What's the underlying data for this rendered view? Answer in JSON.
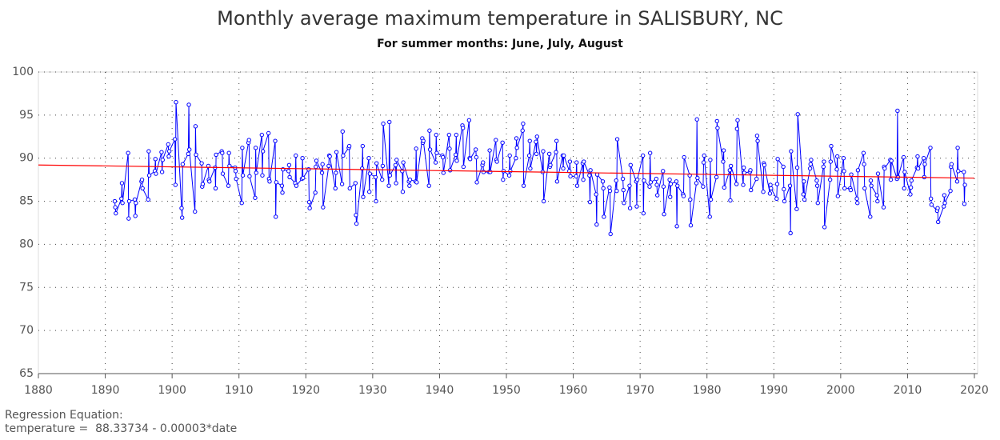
{
  "chart_data": {
    "type": "line",
    "title": "Monthly average maximum temperature in SALISBURY, NC",
    "subtitle": "For summer months: June, July, August",
    "annotations": [
      "Regression Equation:",
      "temperature =  88.33734 - 0.00003*date"
    ],
    "xlim": [
      1880,
      2020
    ],
    "xticks": [
      1880,
      1890,
      1900,
      1910,
      1920,
      1930,
      1940,
      1950,
      1960,
      1970,
      1980,
      1990,
      2000,
      2010,
      2020
    ],
    "ylim": [
      65,
      100
    ],
    "yticks": [
      65,
      70,
      75,
      80,
      85,
      90,
      95,
      100
    ],
    "grid": true,
    "series": [
      {
        "color": "#0000ff",
        "markers": true,
        "x": [
          1891.42,
          1891.5,
          1891.58,
          1892.42,
          1892.5,
          1892.58,
          1893.42,
          1893.5,
          1893.58,
          1894.42,
          1894.5,
          1894.58,
          1895.42,
          1895.5,
          1895.58,
          1896.42,
          1896.5,
          1896.58,
          1897.42,
          1897.5,
          1897.58,
          1898.42,
          1898.5,
          1898.58,
          1899.42,
          1899.5,
          1899.58,
          1900.42,
          1900.5,
          1900.58,
          1901.42,
          1901.5,
          1901.58,
          1902.42,
          1902.5,
          1902.58,
          1903.42,
          1903.5,
          1903.58,
          1904.42,
          1904.5,
          1904.58,
          1905.42,
          1905.5,
          1905.58,
          1906.42,
          1906.5,
          1906.58,
          1907.42,
          1907.5,
          1907.58,
          1908.42,
          1908.5,
          1908.58,
          1909.42,
          1909.5,
          1909.58,
          1910.42,
          1910.5,
          1910.58,
          1911.42,
          1911.5,
          1911.58,
          1912.42,
          1912.5,
          1912.58,
          1913.42,
          1913.5,
          1913.58,
          1914.42,
          1914.5,
          1914.58,
          1915.42,
          1915.5,
          1915.58,
          1916.42,
          1916.5,
          1916.58,
          1917.42,
          1917.5,
          1917.58,
          1918.42,
          1918.5,
          1918.58,
          1919.42,
          1919.5,
          1919.58,
          1920.42,
          1920.5,
          1920.58,
          1921.42,
          1921.5,
          1921.58,
          1922.42,
          1922.5,
          1922.58,
          1923.42,
          1923.5,
          1923.58,
          1924.42,
          1924.5,
          1924.58,
          1925.42,
          1925.5,
          1925.58,
          1926.42,
          1926.5,
          1926.58,
          1927.42,
          1927.5,
          1927.58,
          1928.42,
          1928.5,
          1928.58,
          1929.42,
          1929.5,
          1929.58,
          1930.42,
          1930.5,
          1930.58,
          1931.42,
          1931.5,
          1931.58,
          1932.42,
          1932.5,
          1932.58,
          1933.42,
          1933.5,
          1933.58,
          1934.42,
          1934.5,
          1934.58,
          1935.42,
          1935.5,
          1935.58,
          1936.42,
          1936.5,
          1936.58,
          1937.42,
          1937.5,
          1937.58,
          1938.42,
          1938.5,
          1938.58,
          1939.42,
          1939.5,
          1939.58,
          1940.42,
          1940.5,
          1940.58,
          1941.42,
          1941.5,
          1941.58,
          1942.42,
          1942.5,
          1942.58,
          1943.42,
          1943.5,
          1943.58,
          1944.42,
          1944.5,
          1944.58,
          1945.42,
          1945.5,
          1945.58,
          1946.42,
          1946.5,
          1946.58,
          1947.42,
          1947.5,
          1947.58,
          1948.42,
          1948.5,
          1948.58,
          1949.42,
          1949.5,
          1949.58,
          1950.42,
          1950.5,
          1950.58,
          1951.42,
          1951.5,
          1951.58,
          1952.42,
          1952.5,
          1952.58,
          1953.42,
          1953.5,
          1953.58,
          1954.42,
          1954.5,
          1954.58,
          1955.42,
          1955.5,
          1955.58,
          1956.42,
          1956.5,
          1956.58,
          1957.42,
          1957.5,
          1957.58,
          1958.42,
          1958.5,
          1958.58,
          1959.42,
          1959.5,
          1959.58,
          1960.42,
          1960.5,
          1960.58,
          1961.42,
          1961.5,
          1961.58,
          1962.42,
          1962.5,
          1962.58,
          1963.42,
          1963.5,
          1963.58,
          1964.42,
          1964.5,
          1964.58,
          1965.42,
          1965.5,
          1965.58,
          1966.42,
          1966.5,
          1966.58,
          1967.42,
          1967.5,
          1967.58,
          1968.42,
          1968.5,
          1968.58,
          1969.42,
          1969.5,
          1969.58,
          1970.42,
          1970.5,
          1970.58,
          1971.42,
          1971.5,
          1971.58,
          1972.42,
          1972.5,
          1972.58,
          1973.42,
          1973.5,
          1973.58,
          1974.42,
          1974.5,
          1974.58,
          1975.42,
          1975.5,
          1975.58,
          1976.42,
          1976.5,
          1976.58,
          1977.42,
          1977.5,
          1977.58,
          1978.42,
          1978.5,
          1978.58,
          1979.42,
          1979.5,
          1979.58,
          1980.42,
          1980.5,
          1980.58,
          1981.42,
          1981.5,
          1981.58,
          1982.42,
          1982.5,
          1982.58,
          1983.42,
          1983.5,
          1983.58,
          1984.42,
          1984.5,
          1984.58,
          1985.42,
          1985.5,
          1985.58,
          1986.42,
          1986.5,
          1986.58,
          1987.42,
          1987.5,
          1987.58,
          1988.42,
          1988.5,
          1988.58,
          1989.42,
          1989.5,
          1989.58,
          1990.42,
          1990.5,
          1990.58,
          1991.42,
          1991.5,
          1991.58,
          1992.42,
          1992.5,
          1992.58,
          1993.42,
          1993.5,
          1993.58,
          1994.42,
          1994.5,
          1994.58,
          1995.42,
          1995.5,
          1995.58,
          1996.42,
          1996.5,
          1996.58,
          1997.42,
          1997.5,
          1997.58,
          1998.42,
          1998.5,
          1998.58,
          1999.42,
          1999.5,
          1999.58,
          2000.42,
          2000.5,
          2000.58,
          2001.42,
          2001.5,
          2001.58,
          2002.42,
          2002.5,
          2002.58,
          2003.42,
          2003.5,
          2003.58,
          2004.42,
          2004.5,
          2004.58,
          2005.42,
          2005.5,
          2005.58,
          2006.42,
          2006.5,
          2006.58,
          2007.42,
          2007.5,
          2007.58,
          2008.42,
          2008.5,
          2008.58,
          2009.42,
          2009.5,
          2009.58,
          2010.42,
          2010.5,
          2010.58,
          2011.42,
          2011.5,
          2011.58,
          2012.42,
          2012.5,
          2012.58,
          2013.42,
          2013.5,
          2013.58,
          2014.42,
          2014.5,
          2014.58,
          2015.42,
          2015.5,
          2015.58,
          2016.42,
          2016.5,
          2016.58,
          2017.42,
          2017.5,
          2017.58,
          2018.42,
          2018.5,
          2018.58
        ],
        "values": [
          85.0,
          84.3,
          83.6,
          85.3,
          87.1,
          84.8,
          90.6,
          83.0,
          85.0,
          85.2,
          83.3,
          84.8,
          87.3,
          87.5,
          86.5,
          85.2,
          90.8,
          88.0,
          88.5,
          89.9,
          88.2,
          90.7,
          88.4,
          89.8,
          91.6,
          90.2,
          90.8,
          92.2,
          86.9,
          96.5,
          84.2,
          83.1,
          89.3,
          90.5,
          96.2,
          91.0,
          83.8,
          93.7,
          90.4,
          89.4,
          86.7,
          87.0,
          89.1,
          87.5,
          87.3,
          88.9,
          86.5,
          90.4,
          90.8,
          90.6,
          88.2,
          86.8,
          90.6,
          89.1,
          88.9,
          88.5,
          87.6,
          84.8,
          91.2,
          88.0,
          91.8,
          92.1,
          87.9,
          85.4,
          91.2,
          88.3,
          92.7,
          88.0,
          90.8,
          92.9,
          87.6,
          87.3,
          92.0,
          83.2,
          87.2,
          86.8,
          86.0,
          88.7,
          88.5,
          89.2,
          87.8,
          87.1,
          90.3,
          86.8,
          87.6,
          90.0,
          87.7,
          88.7,
          84.9,
          84.2,
          86.0,
          89.0,
          89.7,
          88.3,
          89.3,
          84.3,
          89.1,
          90.3,
          90.2,
          86.5,
          88.3,
          90.7,
          87.0,
          93.1,
          90.3,
          91.2,
          91.4,
          86.5,
          87.1,
          83.4,
          82.4,
          88.8,
          91.4,
          85.5,
          90.0,
          86.1,
          88.2,
          87.8,
          85.0,
          89.4,
          87.5,
          89.1,
          94.0,
          86.8,
          94.2,
          88.0,
          89.2,
          87.1,
          89.8,
          88.5,
          86.1,
          89.5,
          87.3,
          86.8,
          87.5,
          87.3,
          91.1,
          87.2,
          92.3,
          91.8,
          92.0,
          86.8,
          93.2,
          91.0,
          89.5,
          92.7,
          90.6,
          90.3,
          90.1,
          88.3,
          92.7,
          91.1,
          88.6,
          90.4,
          92.7,
          89.7,
          93.8,
          93.5,
          89.0,
          94.4,
          90.0,
          89.9,
          91.0,
          90.1,
          87.2,
          89.2,
          89.5,
          88.4,
          88.4,
          90.9,
          88.4,
          92.1,
          89.8,
          89.6,
          91.8,
          87.5,
          88.5,
          88.0,
          90.3,
          88.5,
          90.0,
          92.3,
          91.2,
          93.2,
          94.0,
          86.8,
          90.3,
          92.0,
          88.8,
          91.9,
          90.5,
          92.5,
          88.4,
          90.8,
          85.0,
          90.5,
          89.0,
          89.2,
          90.7,
          92.0,
          87.3,
          90.3,
          88.8,
          90.3,
          88.5,
          89.6,
          87.9,
          87.9,
          89.5,
          86.8,
          89.4,
          87.5,
          89.6,
          88.0,
          84.9,
          88.6,
          85.8,
          82.3,
          88.1,
          87.3,
          86.5,
          83.2,
          86.6,
          86.2,
          81.2,
          87.4,
          86.2,
          92.2,
          87.6,
          86.3,
          84.8,
          86.8,
          84.2,
          89.2,
          87.3,
          84.4,
          87.5,
          90.3,
          83.6,
          87.4,
          86.7,
          90.6,
          87.2,
          87.6,
          86.9,
          85.7,
          88.5,
          86.7,
          83.5,
          87.5,
          85.5,
          87.0,
          87.3,
          82.1,
          86.8,
          85.8,
          85.6,
          90.1,
          88.0,
          85.2,
          82.2,
          87.1,
          94.5,
          87.7,
          86.7,
          89.5,
          90.3,
          83.2,
          89.8,
          85.2,
          87.8,
          94.3,
          93.5,
          89.6,
          90.9,
          86.6,
          88.6,
          85.1,
          89.1,
          87.0,
          93.4,
          94.4,
          86.9,
          88.9,
          88.3,
          88.4,
          88.6,
          86.3,
          87.6,
          92.6,
          92.0,
          86.1,
          89.4,
          89.2,
          85.9,
          86.9,
          86.5,
          85.3,
          87.0,
          89.9,
          89.0,
          86.4,
          85.0,
          86.8,
          81.3,
          90.8,
          84.1,
          88.9,
          95.1,
          85.8,
          87.3,
          85.2,
          88.8,
          89.3,
          89.8,
          87.4,
          86.8,
          84.8,
          89.0,
          89.6,
          82.0,
          87.5,
          89.6,
          91.4,
          88.7,
          90.2,
          85.6,
          90.0,
          88.5,
          86.5,
          86.5,
          86.3,
          88.1,
          85.3,
          84.8,
          88.6,
          90.6,
          89.3,
          86.5,
          83.2,
          87.4,
          86.8,
          85.7,
          85.0,
          88.2,
          84.3,
          89.0,
          88.8,
          89.8,
          87.5,
          89.7,
          87.6,
          95.5,
          87.8,
          90.1,
          86.5,
          88.4,
          85.8,
          86.6,
          87.4,
          88.9,
          90.2,
          88.8,
          90.0,
          87.8,
          89.3,
          91.2,
          85.3,
          84.6,
          83.9,
          84.2,
          82.6,
          84.4,
          85.7,
          84.8,
          86.2,
          89.0,
          89.3,
          87.3,
          91.2,
          88.5,
          88.4,
          84.7,
          86.9
        ]
      },
      {
        "color": "#ff0000",
        "markers": false,
        "x": [
          1880,
          2020
        ],
        "values": [
          89.21,
          87.68
        ]
      }
    ]
  }
}
